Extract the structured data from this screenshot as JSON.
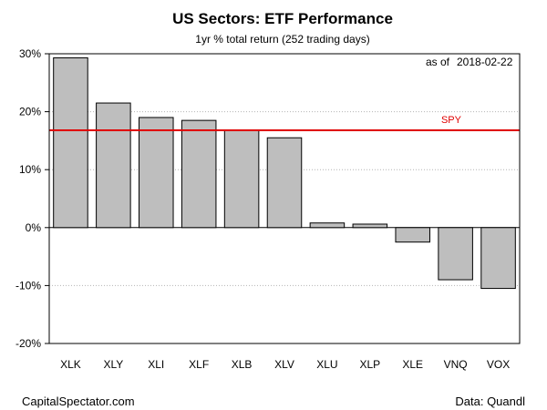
{
  "chart_data": {
    "type": "bar",
    "title": "US Sectors: ETF Performance",
    "subtitle": "1yr % total return (252 trading days)",
    "as_of_label": "as of",
    "as_of_date": "2018-02-22",
    "categories": [
      "XLK",
      "XLY",
      "XLI",
      "XLF",
      "XLB",
      "XLV",
      "XLU",
      "XLP",
      "XLE",
      "VNQ",
      "VOX"
    ],
    "values": [
      29.3,
      21.5,
      19.0,
      18.5,
      16.8,
      15.5,
      0.8,
      0.6,
      -2.5,
      -9.0,
      -10.5
    ],
    "unit": "%",
    "ylim": [
      -20,
      30
    ],
    "yticks": [
      -20,
      -10,
      0,
      10,
      20,
      30
    ],
    "ytick_labels": [
      "-20%",
      "-10%",
      "0%",
      "10%",
      "20%",
      "30%"
    ],
    "grid": "horizontal dotted",
    "reference_line": {
      "label": "SPY",
      "value": 16.8
    },
    "xlabel": "",
    "ylabel": ""
  },
  "footer": {
    "left": "CapitalSpectator.com",
    "right": "Data: Quandl"
  },
  "colors": {
    "bar_fill": "#bebebe",
    "bar_stroke": "#000000",
    "reference": "#e00000",
    "grid": "#b4b4b4"
  }
}
